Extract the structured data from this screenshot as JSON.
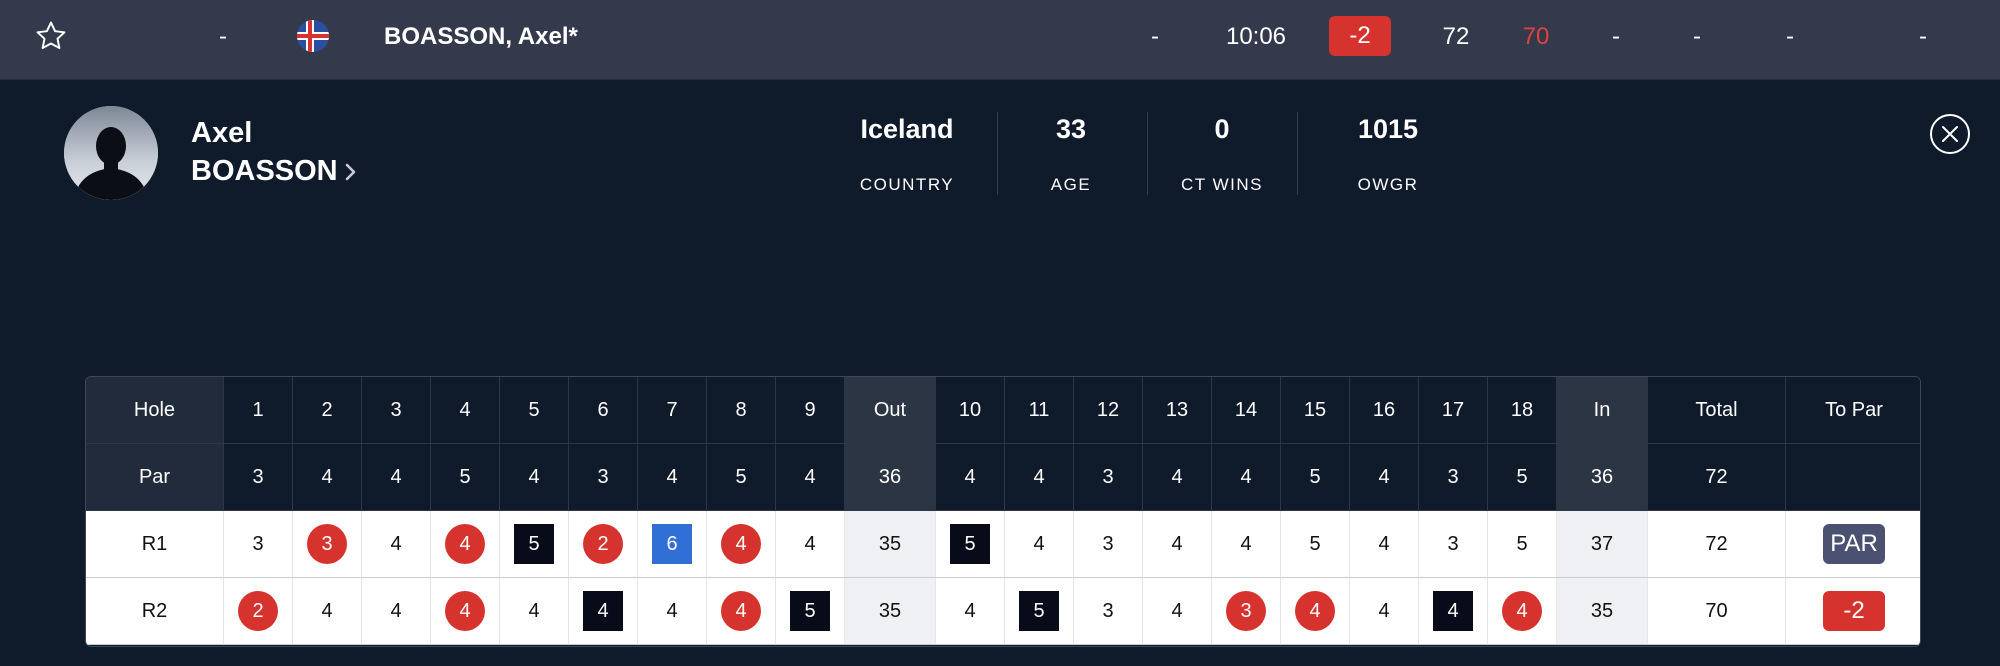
{
  "leaderboard_row": {
    "position": "-",
    "player_name": "BOASSON, Axel*",
    "thru": "-",
    "tee_time": "10:06",
    "to_par": "-2",
    "r1": "72",
    "r2": "70",
    "r3": "-",
    "r4": "-",
    "total": "-",
    "earnings": "-",
    "colors": {
      "negative": "#d7332e",
      "bar": "#343a4b"
    }
  },
  "player": {
    "first_name": "Axel",
    "last_name": "BOASSON",
    "stats": [
      {
        "value": "Iceland",
        "label": "COUNTRY"
      },
      {
        "value": "33",
        "label": "AGE"
      },
      {
        "value": "0",
        "label": "CT WINS"
      },
      {
        "value": "1015",
        "label": "OWGR"
      }
    ]
  },
  "scorecard": {
    "header": [
      "Hole",
      "1",
      "2",
      "3",
      "4",
      "5",
      "6",
      "7",
      "8",
      "9",
      "Out",
      "10",
      "11",
      "12",
      "13",
      "14",
      "15",
      "16",
      "17",
      "18",
      "In",
      "Total",
      "To Par"
    ],
    "par": [
      "Par",
      "3",
      "4",
      "4",
      "5",
      "4",
      "3",
      "4",
      "5",
      "4",
      "36",
      "4",
      "4",
      "3",
      "4",
      "4",
      "5",
      "4",
      "3",
      "5",
      "36",
      "72",
      ""
    ],
    "rounds": [
      {
        "cells": [
          {
            "v": "R1"
          },
          {
            "v": "3"
          },
          {
            "v": "3",
            "m": "circle"
          },
          {
            "v": "4"
          },
          {
            "v": "4",
            "m": "circle"
          },
          {
            "v": "5",
            "m": "square"
          },
          {
            "v": "2",
            "m": "circle"
          },
          {
            "v": "6",
            "m": "bluesq"
          },
          {
            "v": "4",
            "m": "circle"
          },
          {
            "v": "4"
          },
          {
            "v": "35"
          },
          {
            "v": "5",
            "m": "square"
          },
          {
            "v": "4"
          },
          {
            "v": "3"
          },
          {
            "v": "4"
          },
          {
            "v": "4"
          },
          {
            "v": "5"
          },
          {
            "v": "4"
          },
          {
            "v": "3"
          },
          {
            "v": "5"
          },
          {
            "v": "37"
          },
          {
            "v": "72"
          },
          {
            "v": "PAR",
            "m": "pill-par"
          }
        ]
      },
      {
        "cells": [
          {
            "v": "R2"
          },
          {
            "v": "2",
            "m": "circle"
          },
          {
            "v": "4"
          },
          {
            "v": "4"
          },
          {
            "v": "4",
            "m": "circle"
          },
          {
            "v": "4"
          },
          {
            "v": "4",
            "m": "square"
          },
          {
            "v": "4"
          },
          {
            "v": "4",
            "m": "circle"
          },
          {
            "v": "5",
            "m": "square"
          },
          {
            "v": "35"
          },
          {
            "v": "4"
          },
          {
            "v": "5",
            "m": "square"
          },
          {
            "v": "3"
          },
          {
            "v": "4"
          },
          {
            "v": "3",
            "m": "circle"
          },
          {
            "v": "4",
            "m": "circle"
          },
          {
            "v": "4"
          },
          {
            "v": "4",
            "m": "square"
          },
          {
            "v": "4",
            "m": "circle"
          },
          {
            "v": "35"
          },
          {
            "v": "70"
          },
          {
            "v": "-2",
            "m": "pill-neg"
          }
        ]
      }
    ]
  },
  "icons": {
    "favorite": "star-icon",
    "country_flag": "iceland-flag-icon",
    "profile_link": "chevron-right-icon",
    "close": "close-circle-icon"
  }
}
